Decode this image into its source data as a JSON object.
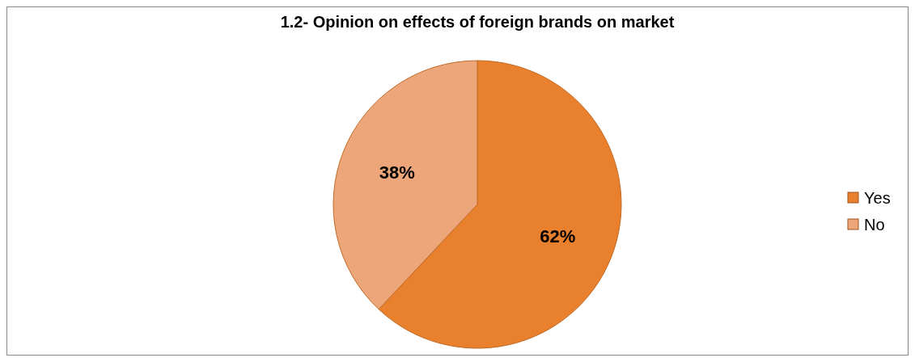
{
  "chart_data": {
    "type": "pie",
    "title": "1.2- Opinion on effects of foreign brands on market",
    "categories": [
      "Yes",
      "No"
    ],
    "values": [
      62,
      38
    ],
    "colors": [
      "#e8802e",
      "#eda57a"
    ],
    "value_labels": [
      "62%",
      "38%"
    ],
    "legend": "right"
  }
}
